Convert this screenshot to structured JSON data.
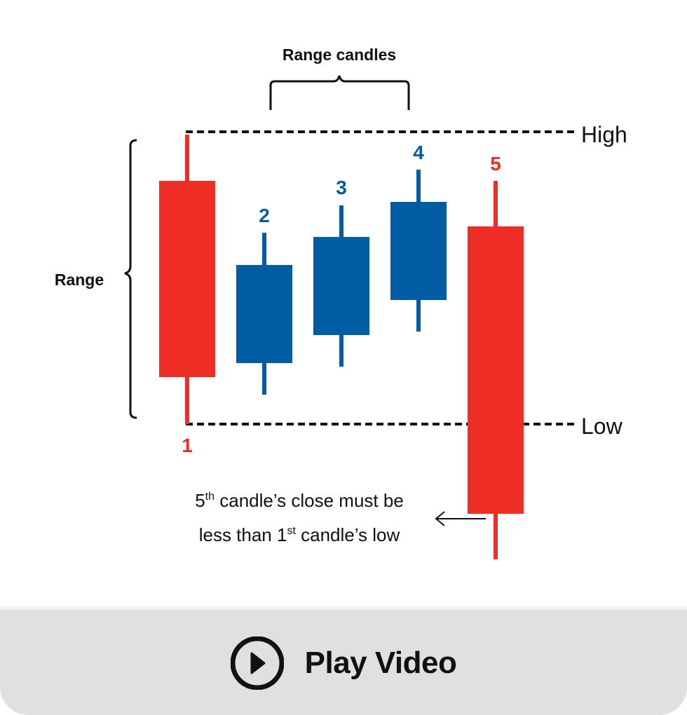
{
  "colors": {
    "bearish": "#ee2d24",
    "bullish": "#005da3",
    "line": "#111111",
    "button_bg": "#e0e0e0"
  },
  "labels": {
    "range_candles": "Range candles",
    "range": "Range",
    "high": "High",
    "low": "Low"
  },
  "candles": [
    {
      "label": "1",
      "direction": "bearish"
    },
    {
      "label": "2",
      "direction": "bullish"
    },
    {
      "label": "3",
      "direction": "bullish"
    },
    {
      "label": "4",
      "direction": "bullish"
    },
    {
      "label": "5",
      "direction": "bearish"
    }
  ],
  "note": {
    "line1_num": "5",
    "line1_sup": "th",
    "line1_rest": " candle’s close must be",
    "line2_pre": "less than 1",
    "line2_sup": "st",
    "line2_rest": " candle’s low"
  },
  "button": {
    "label": "Play Video",
    "icon": "play-circle-icon"
  }
}
